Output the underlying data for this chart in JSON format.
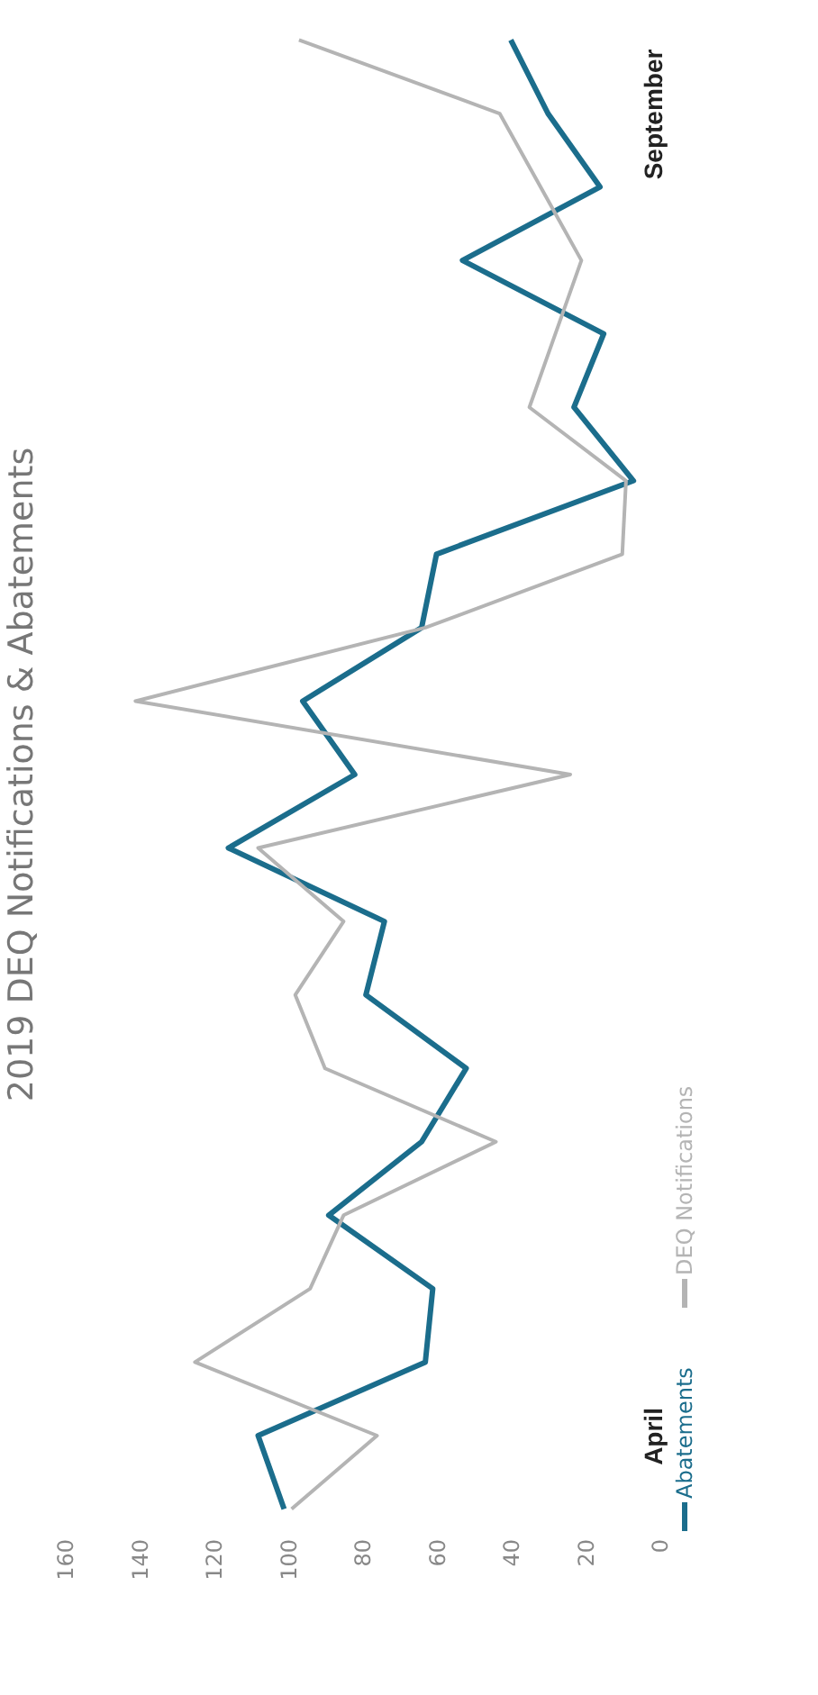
{
  "chart_data": {
    "type": "line",
    "title": "2019 DEQ Notifications & Abatements",
    "categories": [
      null,
      "September",
      null,
      null,
      null,
      null,
      null,
      null,
      null,
      null,
      null,
      null,
      null,
      null,
      null,
      null,
      null,
      null,
      null,
      "April",
      null
    ],
    "series": [
      {
        "name": "Abatements",
        "color": "#1b6d8c",
        "values": [
          40,
          30,
          16,
          53,
          15,
          23,
          7,
          60,
          64,
          96,
          82,
          116,
          74,
          79,
          52,
          64,
          89,
          61,
          63,
          108,
          101
        ]
      },
      {
        "name": "DEQ Notifications",
        "color": "#b4b4b4",
        "values": [
          97,
          43,
          32,
          21,
          28,
          35,
          9,
          10,
          63,
          141,
          24,
          108,
          85,
          98,
          90,
          44,
          85,
          94,
          125,
          76,
          99
        ]
      }
    ],
    "orientation": "horizontal",
    "xlim": [
      160,
      0
    ],
    "xticks": [
      0,
      20,
      40,
      60,
      80,
      100,
      120,
      140,
      160
    ],
    "legend": "bottom",
    "grid": false,
    "marker": "none",
    "line_style": "solid"
  }
}
